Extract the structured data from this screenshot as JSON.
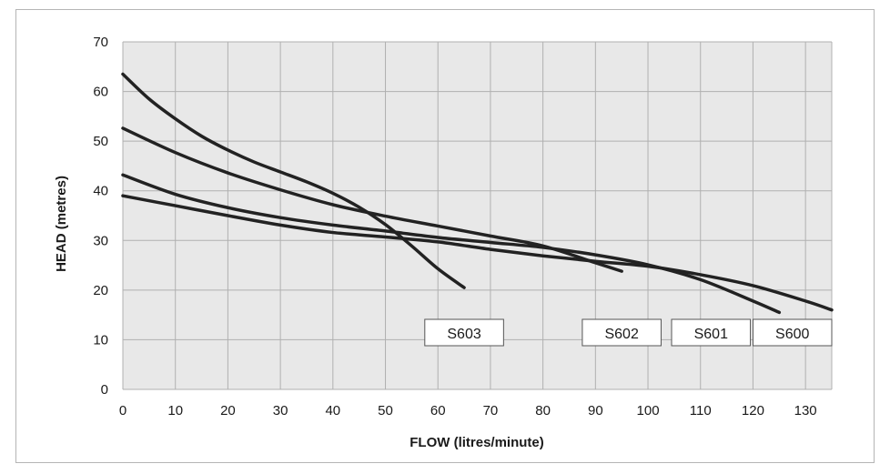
{
  "chart_data": {
    "type": "line",
    "title": "",
    "xlabel": "FLOW (litres/minute)",
    "ylabel": "HEAD (metres)",
    "xlim": [
      0,
      135
    ],
    "ylim": [
      0,
      70
    ],
    "x_ticks": [
      0,
      10,
      20,
      30,
      40,
      50,
      60,
      70,
      80,
      90,
      100,
      110,
      120,
      130
    ],
    "y_ticks": [
      0,
      10,
      20,
      30,
      40,
      50,
      60,
      70
    ],
    "grid": true,
    "line_color": "#222222",
    "grid_color": "#b0b0b0",
    "plot_background": "#e8e8e8",
    "series": [
      {
        "name": "S603",
        "x": [
          0,
          5,
          10,
          15,
          20,
          25,
          30,
          35,
          40,
          45,
          50,
          55,
          60,
          65
        ],
        "y": [
          63.5,
          58.5,
          54.5,
          51,
          48.2,
          45.8,
          43.8,
          41.8,
          39.5,
          36.7,
          33.2,
          28.9,
          24.3,
          20.5
        ],
        "label_box": [
          57.5,
          72.5
        ]
      },
      {
        "name": "S602",
        "x": [
          0,
          10,
          20,
          30,
          40,
          50,
          60,
          70,
          80,
          90,
          95
        ],
        "y": [
          52.6,
          47.7,
          43.6,
          40.2,
          37.2,
          34.9,
          32.9,
          30.9,
          28.9,
          25.5,
          23.8
        ],
        "label_box": [
          87.5,
          102.5
        ]
      },
      {
        "name": "S601",
        "x": [
          0,
          10,
          20,
          30,
          40,
          50,
          60,
          70,
          80,
          90,
          100,
          110,
          120,
          125
        ],
        "y": [
          43.2,
          39.3,
          36.6,
          34.6,
          33.1,
          31.9,
          30.6,
          29.6,
          28.6,
          27.1,
          25.1,
          22.1,
          17.8,
          15.5
        ],
        "label_box": [
          104.5,
          119.5
        ]
      },
      {
        "name": "S600",
        "x": [
          0,
          10,
          20,
          30,
          40,
          50,
          60,
          70,
          80,
          90,
          100,
          110,
          120,
          130,
          135
        ],
        "y": [
          39,
          37,
          35,
          33.1,
          31.6,
          30.7,
          29.7,
          28.2,
          26.9,
          25.8,
          24.8,
          23.1,
          20.9,
          17.8,
          16
        ],
        "label_box": [
          120,
          135
        ]
      }
    ]
  }
}
